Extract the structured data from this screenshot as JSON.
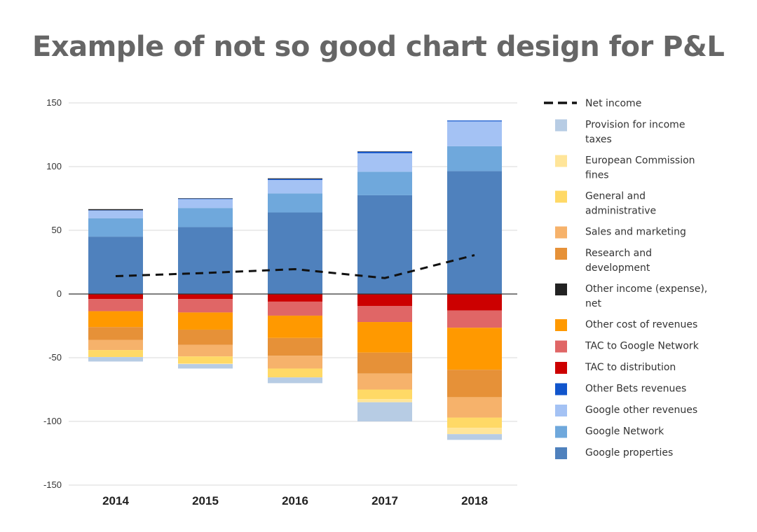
{
  "chart_data": {
    "type": "bar",
    "stacked": true,
    "title": "Example of not so good chart design for P&L",
    "categories": [
      "2014",
      "2015",
      "2016",
      "2017",
      "2018"
    ],
    "ylim": [
      -150,
      150
    ],
    "yticks": [
      150,
      100,
      50,
      0,
      -50,
      -100,
      -150
    ],
    "grid": true,
    "legend_position": "right",
    "positive_series": [
      {
        "name": "Google properties",
        "color": "#4f81bd",
        "values": [
          45,
          52.5,
          64,
          77.5,
          96.5
        ]
      },
      {
        "name": "Google Network",
        "color": "#6fa8dc",
        "values": [
          14.5,
          15,
          15,
          18.5,
          19.5
        ]
      },
      {
        "name": "Google other revenues",
        "color": "#a4c2f4",
        "values": [
          6,
          7,
          10.5,
          14.5,
          19.5
        ]
      },
      {
        "name": "Other Bets revenues",
        "color": "#1155cc",
        "values": [
          0.3,
          0.4,
          0.8,
          1.2,
          0.7
        ]
      },
      {
        "name": "Other income (expense), net",
        "color": "#222222",
        "values": [
          0.8,
          0.3,
          0.5,
          0.3,
          0
        ]
      }
    ],
    "negative_series": [
      {
        "name": "TAC to distribution",
        "color": "#cc0000",
        "values": [
          -4,
          -4,
          -6,
          -9.5,
          -13
        ]
      },
      {
        "name": "TAC to Google Network",
        "color": "#e06666",
        "values": [
          -9.5,
          -10.5,
          -11,
          -12.5,
          -13.5
        ]
      },
      {
        "name": "Other cost of revenues",
        "color": "#ff9900",
        "values": [
          -12.5,
          -13.5,
          -17.5,
          -24,
          -33
        ]
      },
      {
        "name": "Research and development",
        "color": "#e69138",
        "values": [
          -10,
          -12,
          -14,
          -16.5,
          -21.5
        ]
      },
      {
        "name": "Sales and marketing",
        "color": "#f6b26b",
        "values": [
          -8,
          -9,
          -10,
          -12.5,
          -16
        ]
      },
      {
        "name": "General and administrative",
        "color": "#ffd966",
        "values": [
          -5.5,
          -5.5,
          -7,
          -7.5,
          -8
        ]
      },
      {
        "name": "European Commission fines",
        "color": "#ffe599",
        "values": [
          0,
          -0.5,
          0,
          -2.5,
          -5
        ]
      },
      {
        "name": "Provision for income taxes",
        "color": "#b7cce4",
        "values": [
          -3.5,
          -3.5,
          -4.5,
          -15,
          -4.5
        ]
      }
    ],
    "line_series": {
      "name": "Net income",
      "color": "#111111",
      "dash": true,
      "values": [
        14,
        16.5,
        19.5,
        12.5,
        30.5
      ]
    }
  },
  "legend": [
    {
      "label": "Net income",
      "kind": "line",
      "color": "#111111"
    },
    {
      "label": "Provision for income taxes",
      "lines": [
        "Provision for income",
        "taxes"
      ],
      "color": "#b7cce4"
    },
    {
      "label": "European Commission fines",
      "lines": [
        "European Commission",
        "fines"
      ],
      "color": "#ffe599"
    },
    {
      "label": "General and administrative",
      "lines": [
        "General and",
        "administrative"
      ],
      "color": "#ffd966"
    },
    {
      "label": "Sales and marketing",
      "color": "#f6b26b"
    },
    {
      "label": "Research and development",
      "lines": [
        "Research and",
        "development"
      ],
      "color": "#e69138"
    },
    {
      "label": "Other income (expense), net",
      "lines": [
        "Other income (expense),",
        "net"
      ],
      "color": "#222222"
    },
    {
      "label": "Other cost of revenues",
      "color": "#ff9900"
    },
    {
      "label": "TAC to Google Network",
      "color": "#e06666"
    },
    {
      "label": "TAC to distribution",
      "color": "#cc0000"
    },
    {
      "label": "Other Bets revenues",
      "color": "#1155cc"
    },
    {
      "label": "Google other revenues",
      "color": "#a4c2f4"
    },
    {
      "label": "Google Network",
      "color": "#6fa8dc"
    },
    {
      "label": "Google properties",
      "color": "#4f81bd"
    }
  ]
}
